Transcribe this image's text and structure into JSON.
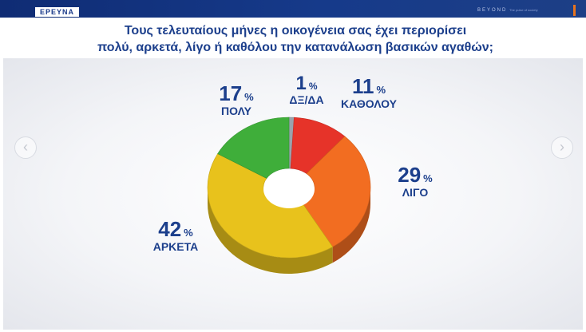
{
  "header": {
    "brand": "ΕΡΕΥΝΑ",
    "partner": "BEYOND",
    "tagline": "The pulse of society"
  },
  "question": {
    "line1": "Τους τελευταίους μήνες η οικογένεια σας έχει περιορίσει",
    "line2": "πολύ, αρκετά, λίγο ή καθόλου την κατανάλωση βασικών αγαθών;"
  },
  "nav": {
    "prev_icon": "‹",
    "next_icon": "›"
  },
  "chart_data": {
    "type": "pie",
    "style": "3d-donut",
    "slices": [
      {
        "label": "ΔΞ/ΔΑ",
        "value": 1,
        "unit": "%",
        "color": "#9aa3ac"
      },
      {
        "label": "ΚΑΘΟΛΟΥ",
        "value": 11,
        "unit": "%",
        "color": "#e63329"
      },
      {
        "label": "ΛΙΓΟ",
        "value": 29,
        "unit": "%",
        "color": "#f26d21"
      },
      {
        "label": "ΑΡΚΕΤΑ",
        "value": 42,
        "unit": "%",
        "color": "#e8c21c"
      },
      {
        "label": "ΠΟΛΥ",
        "value": 17,
        "unit": "%",
        "color": "#3fae3a"
      }
    ]
  }
}
